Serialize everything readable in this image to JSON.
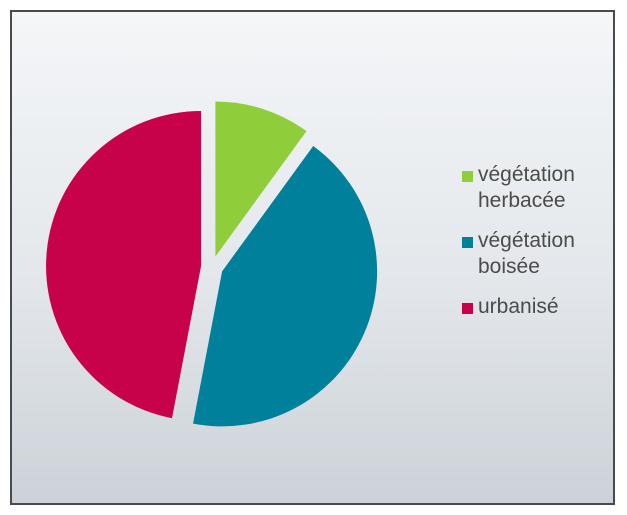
{
  "chart_data": {
    "type": "pie",
    "categories": [
      "végétation herbacée",
      "végétation boisée",
      "urbanisé"
    ],
    "values": [
      10,
      43,
      47
    ],
    "colors": [
      "#8fcd3a",
      "#00809b",
      "#c8024a"
    ],
    "exploded": true,
    "legend_position": "right",
    "title": ""
  }
}
